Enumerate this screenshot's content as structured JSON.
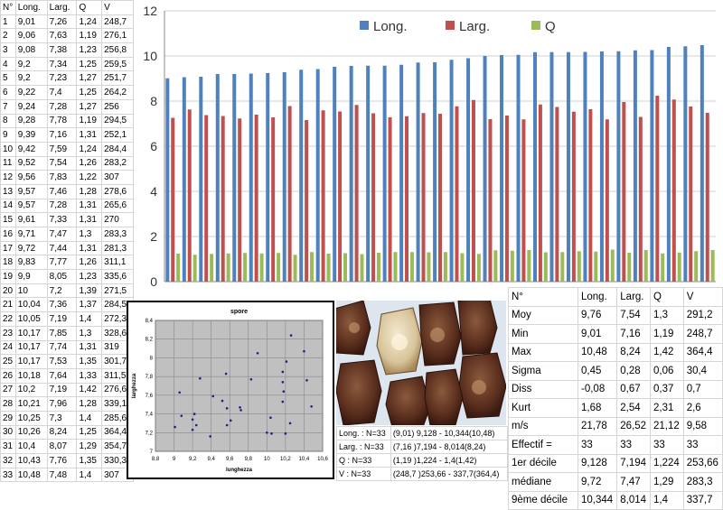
{
  "measurements": {
    "headers": [
      "N°",
      "Long.",
      "Larg.",
      "Q",
      "V"
    ],
    "rows": [
      [
        "1",
        "9,01",
        "7,26",
        "1,24",
        "248,7"
      ],
      [
        "2",
        "9,06",
        "7,63",
        "1,19",
        "276,1"
      ],
      [
        "3",
        "9,08",
        "7,38",
        "1,23",
        "256,8"
      ],
      [
        "4",
        "9,2",
        "7,34",
        "1,25",
        "259,5"
      ],
      [
        "5",
        "9,2",
        "7,23",
        "1,27",
        "251,7"
      ],
      [
        "6",
        "9,22",
        "7,4",
        "1,25",
        "264,2"
      ],
      [
        "7",
        "9,24",
        "7,28",
        "1,27",
        "256"
      ],
      [
        "8",
        "9,28",
        "7,78",
        "1,19",
        "294,5"
      ],
      [
        "9",
        "9,39",
        "7,16",
        "1,31",
        "252,1"
      ],
      [
        "10",
        "9,42",
        "7,59",
        "1,24",
        "284,4"
      ],
      [
        "11",
        "9,52",
        "7,54",
        "1,26",
        "283,2"
      ],
      [
        "12",
        "9,56",
        "7,83",
        "1,22",
        "307"
      ],
      [
        "13",
        "9,57",
        "7,46",
        "1,28",
        "278,6"
      ],
      [
        "14",
        "9,57",
        "7,28",
        "1,31",
        "265,6"
      ],
      [
        "15",
        "9,61",
        "7,33",
        "1,31",
        "270"
      ],
      [
        "16",
        "9,71",
        "7,47",
        "1,3",
        "283,3"
      ],
      [
        "17",
        "9,72",
        "7,44",
        "1,31",
        "281,3"
      ],
      [
        "18",
        "9,83",
        "7,77",
        "1,26",
        "311,1"
      ],
      [
        "19",
        "9,9",
        "8,05",
        "1,23",
        "335,6"
      ],
      [
        "20",
        "10",
        "7,2",
        "1,39",
        "271,5"
      ],
      [
        "21",
        "10,04",
        "7,36",
        "1,37",
        "284,5"
      ],
      [
        "22",
        "10,05",
        "7,19",
        "1,4",
        "272,3"
      ],
      [
        "23",
        "10,17",
        "7,85",
        "1,3",
        "328,6"
      ],
      [
        "24",
        "10,17",
        "7,74",
        "1,31",
        "319"
      ],
      [
        "25",
        "10,17",
        "7,53",
        "1,35",
        "301,7"
      ],
      [
        "26",
        "10,18",
        "7,64",
        "1,33",
        "311,5"
      ],
      [
        "27",
        "10,2",
        "7,19",
        "1,42",
        "276,6"
      ],
      [
        "28",
        "10,21",
        "7,96",
        "1,28",
        "339,1"
      ],
      [
        "29",
        "10,25",
        "7,3",
        "1,4",
        "285,6"
      ],
      [
        "30",
        "10,26",
        "8,24",
        "1,25",
        "364,4"
      ],
      [
        "31",
        "10,4",
        "8,07",
        "1,29",
        "354,7"
      ],
      [
        "32",
        "10,43",
        "7,76",
        "1,35",
        "330,3"
      ],
      [
        "33",
        "10,48",
        "7,48",
        "1,4",
        "307"
      ]
    ]
  },
  "chart_data": [
    {
      "type": "bar",
      "ylim": [
        0,
        12
      ],
      "yticks": [
        "0",
        "2",
        "4",
        "6",
        "8",
        "10",
        "12"
      ],
      "legend_position": "top",
      "grid": true,
      "series": [
        {
          "name": "Long.",
          "color": "#4f81bd",
          "values": [
            9.01,
            9.06,
            9.08,
            9.2,
            9.2,
            9.22,
            9.24,
            9.28,
            9.39,
            9.42,
            9.52,
            9.56,
            9.57,
            9.57,
            9.61,
            9.71,
            9.72,
            9.83,
            9.9,
            10,
            10.04,
            10.05,
            10.17,
            10.17,
            10.17,
            10.18,
            10.2,
            10.21,
            10.25,
            10.26,
            10.4,
            10.43,
            10.48
          ]
        },
        {
          "name": "Larg.",
          "color": "#c0504d",
          "values": [
            7.26,
            7.63,
            7.38,
            7.34,
            7.23,
            7.4,
            7.28,
            7.78,
            7.16,
            7.59,
            7.54,
            7.83,
            7.46,
            7.28,
            7.33,
            7.47,
            7.44,
            7.77,
            8.05,
            7.2,
            7.36,
            7.19,
            7.85,
            7.74,
            7.53,
            7.64,
            7.19,
            7.96,
            7.3,
            8.24,
            8.07,
            7.76,
            7.48
          ]
        },
        {
          "name": "Q",
          "color": "#9bbb59",
          "values": [
            1.24,
            1.19,
            1.23,
            1.25,
            1.27,
            1.25,
            1.27,
            1.19,
            1.31,
            1.24,
            1.26,
            1.22,
            1.28,
            1.31,
            1.31,
            1.3,
            1.31,
            1.26,
            1.23,
            1.39,
            1.37,
            1.4,
            1.3,
            1.31,
            1.35,
            1.33,
            1.42,
            1.28,
            1.4,
            1.25,
            1.29,
            1.35,
            1.4
          ]
        }
      ]
    },
    {
      "type": "scatter",
      "title": "spore",
      "xlabel": "lunghezza",
      "ylabel": "larghezza",
      "xlim": [
        8.8,
        10.6
      ],
      "ylim": [
        7,
        8.4
      ],
      "xticks": [
        "8,8",
        "9",
        "9,2",
        "9,4",
        "9,6",
        "9,8",
        "10",
        "10,2",
        "10,4",
        "10,6"
      ],
      "yticks": [
        "7",
        "7,2",
        "7,4",
        "7,6",
        "7,8",
        "8",
        "8,2",
        "8,4"
      ],
      "color": "#1a237e",
      "grid": true,
      "x": [
        9.01,
        9.06,
        9.08,
        9.2,
        9.2,
        9.22,
        9.24,
        9.28,
        9.39,
        9.42,
        9.52,
        9.56,
        9.57,
        9.57,
        9.61,
        9.71,
        9.72,
        9.83,
        9.9,
        10,
        10.04,
        10.05,
        10.17,
        10.17,
        10.17,
        10.18,
        10.2,
        10.21,
        10.25,
        10.26,
        10.4,
        10.43,
        10.48
      ],
      "y": [
        7.26,
        7.63,
        7.38,
        7.34,
        7.23,
        7.4,
        7.28,
        7.78,
        7.16,
        7.59,
        7.54,
        7.83,
        7.46,
        7.28,
        7.33,
        7.47,
        7.44,
        7.77,
        8.05,
        7.2,
        7.36,
        7.19,
        7.85,
        7.74,
        7.53,
        7.64,
        7.19,
        7.96,
        7.3,
        8.24,
        8.07,
        7.76,
        7.48
      ]
    }
  ],
  "summary": [
    [
      "Long. : N=33",
      "(9,01) 9,128 - 10,344(10,48)"
    ],
    [
      "Larg. : N=33",
      "(7,16 )7,194 - 8,014(8,24)"
    ],
    [
      "Q : N=33",
      "(1,19 )1,224 - 1,4(1,42)"
    ],
    [
      "V : N=33",
      "(248,7 )253,66 - 337,7(364,4)"
    ]
  ],
  "stats": {
    "headers": [
      "N°",
      "Long.",
      "Larg.",
      "Q",
      "V"
    ],
    "rows": [
      [
        "Moy",
        "9,76",
        "7,54",
        "1,3",
        "291,2"
      ],
      [
        "Min",
        "9,01",
        "7,16",
        "1,19",
        "248,7"
      ],
      [
        "Max",
        "10,48",
        "8,24",
        "1,42",
        "364,4"
      ],
      [
        "Sigma",
        "0,45",
        "0,28",
        "0,06",
        "30,4"
      ],
      [
        "Diss",
        "-0,08",
        "0,67",
        "0,37",
        "0,7"
      ],
      [
        "Kurt",
        "1,68",
        "2,54",
        "2,31",
        "2,6"
      ],
      [
        "m/s",
        "21,78",
        "26,52",
        "21,12",
        "9,58"
      ],
      [
        "Effectif =",
        "33",
        "33",
        "33",
        "33"
      ],
      [
        "1er décile",
        "9,128",
        "7,194",
        "1,224",
        "253,66"
      ],
      [
        "médiane",
        "9,72",
        "7,47",
        "1,29",
        "283,3"
      ],
      [
        "9ème décile",
        "10,344",
        "8,014",
        "1,4",
        "337,7"
      ]
    ]
  }
}
